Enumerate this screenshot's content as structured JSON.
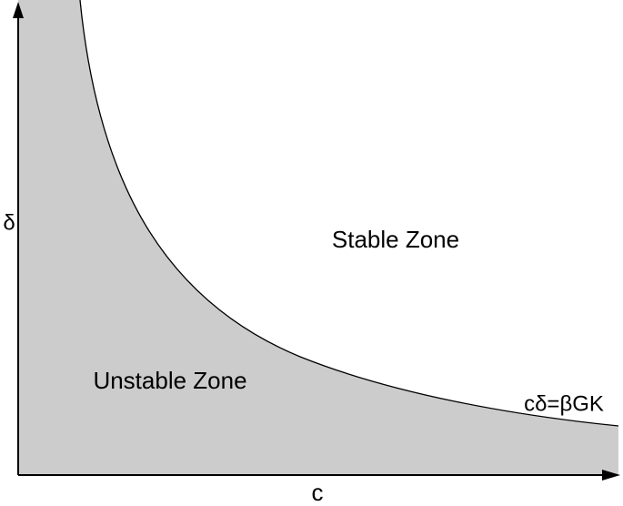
{
  "axes": {
    "y_label": "δ",
    "x_label": "c"
  },
  "regions": {
    "stable": "Stable Zone",
    "unstable": "Unstable Zone"
  },
  "curve": {
    "label": "cδ=βGK"
  }
}
